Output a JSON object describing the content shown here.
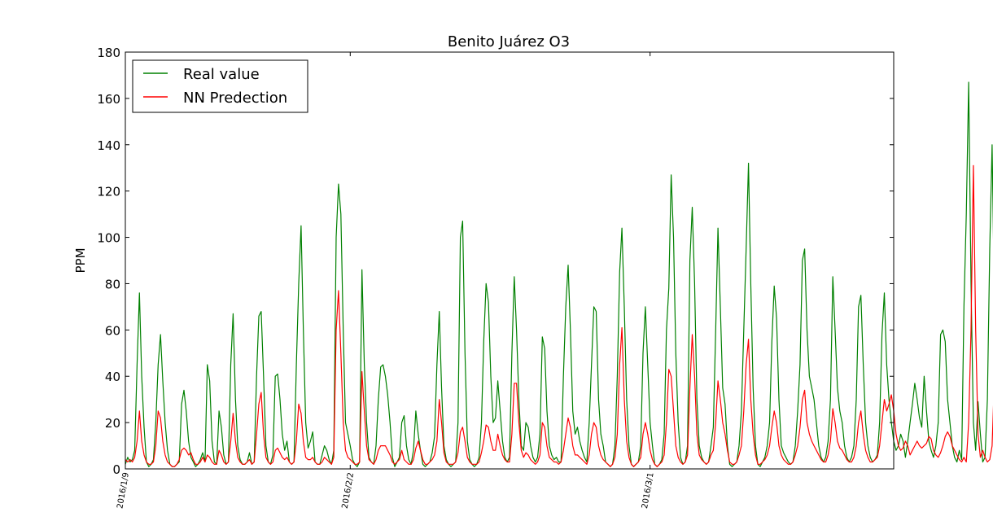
{
  "chart_data": {
    "type": "line",
    "title": "Benito Juárez O3",
    "xlabel": "",
    "ylabel": "PPM",
    "ylim": [
      0,
      180
    ],
    "y_ticks": [
      0,
      20,
      40,
      60,
      80,
      100,
      120,
      140,
      160,
      180
    ],
    "x_tick_labels": [
      "2016/1/9",
      "2016/2/2",
      "2016/3/1"
    ],
    "x_tick_index": [
      0,
      96,
      224
    ],
    "x_range": [
      0,
      328
    ],
    "grid": false,
    "legend_position": "upper-left",
    "series": [
      {
        "name": "Real value",
        "color": "#008000",
        "values": [
          2,
          5,
          3,
          4,
          8,
          45,
          76,
          40,
          18,
          3,
          1,
          2,
          4,
          20,
          45,
          58,
          38,
          20,
          8,
          2,
          1,
          1,
          2,
          3,
          28,
          34,
          25,
          12,
          5,
          3,
          1,
          2,
          4,
          7,
          3,
          45,
          38,
          12,
          3,
          2,
          25,
          18,
          6,
          2,
          3,
          45,
          67,
          30,
          10,
          4,
          2,
          2,
          3,
          7,
          2,
          3,
          40,
          66,
          68,
          40,
          10,
          3,
          2,
          6,
          40,
          41,
          30,
          15,
          8,
          12,
          3,
          2,
          3,
          45,
          80,
          105,
          60,
          20,
          9,
          12,
          16,
          3,
          2,
          2,
          6,
          10,
          8,
          4,
          2,
          8,
          100,
          123,
          110,
          60,
          20,
          15,
          10,
          4,
          2,
          1,
          3,
          86,
          45,
          20,
          5,
          3,
          2,
          10,
          30,
          44,
          45,
          40,
          32,
          20,
          5,
          1,
          3,
          5,
          20,
          23,
          10,
          4,
          2,
          8,
          25,
          15,
          8,
          2,
          1,
          2,
          3,
          7,
          14,
          45,
          68,
          35,
          10,
          4,
          2,
          1,
          2,
          3,
          20,
          100,
          107,
          50,
          12,
          4,
          2,
          1,
          2,
          5,
          20,
          55,
          80,
          72,
          40,
          20,
          22,
          38,
          25,
          12,
          5,
          3,
          5,
          50,
          83,
          60,
          30,
          10,
          8,
          20,
          18,
          10,
          5,
          3,
          5,
          15,
          57,
          52,
          25,
          10,
          6,
          4,
          5,
          3,
          3,
          40,
          70,
          88,
          60,
          25,
          15,
          18,
          12,
          8,
          5,
          3,
          20,
          45,
          70,
          68,
          30,
          15,
          10,
          3,
          2,
          1,
          2,
          10,
          40,
          85,
          104,
          70,
          30,
          10,
          2,
          1,
          2,
          3,
          10,
          50,
          70,
          45,
          20,
          10,
          2,
          1,
          2,
          4,
          15,
          60,
          78,
          127,
          100,
          50,
          20,
          5,
          2,
          3,
          10,
          90,
          113,
          80,
          30,
          10,
          5,
          3,
          2,
          3,
          10,
          18,
          60,
          104,
          70,
          35,
          28,
          10,
          2,
          1,
          2,
          3,
          10,
          25,
          60,
          95,
          132,
          80,
          35,
          10,
          2,
          1,
          3,
          5,
          10,
          20,
          55,
          79,
          65,
          30,
          10,
          7,
          5,
          3,
          2,
          3,
          10,
          25,
          45,
          90,
          95,
          60,
          40,
          35,
          30,
          20,
          10,
          5,
          3,
          5,
          12,
          30,
          83,
          60,
          35,
          25,
          20,
          10,
          5,
          3,
          5,
          10,
          30,
          70,
          75,
          45,
          20,
          10,
          5,
          3,
          4,
          6,
          20,
          58,
          76,
          45,
          30,
          20,
          12,
          8,
          10,
          15,
          12,
          5,
          12,
          20,
          28,
          37,
          30,
          22,
          18,
          40,
          25,
          12,
          8,
          5,
          10,
          20,
          58,
          60,
          55,
          30,
          20,
          10,
          5,
          3,
          8,
          4,
          70,
          110,
          167,
          80,
          20,
          8,
          29,
          15,
          3,
          5,
          30,
          95,
          140,
          70,
          30,
          18,
          10,
          30,
          40,
          15,
          5,
          10,
          20,
          68,
          30,
          40,
          10,
          5,
          3,
          3,
          5,
          2,
          10,
          20,
          83,
          60,
          25,
          12,
          5,
          3,
          2,
          2,
          3,
          10,
          45,
          71,
          55,
          30,
          20,
          22,
          5
        ]
      },
      {
        "name": "NN Predection",
        "color": "#ff0000",
        "values": [
          4,
          3,
          4,
          3,
          5,
          12,
          25,
          12,
          6,
          3,
          2,
          2,
          3,
          10,
          25,
          22,
          12,
          6,
          3,
          2,
          1,
          1,
          2,
          4,
          8,
          9,
          8,
          6,
          7,
          4,
          2,
          2,
          3,
          5,
          3,
          6,
          5,
          3,
          2,
          2,
          8,
          6,
          3,
          2,
          3,
          12,
          24,
          12,
          5,
          3,
          2,
          2,
          3,
          4,
          2,
          3,
          15,
          28,
          33,
          15,
          5,
          3,
          2,
          3,
          8,
          9,
          7,
          5,
          4,
          5,
          3,
          2,
          3,
          12,
          28,
          24,
          12,
          5,
          4,
          4,
          5,
          3,
          2,
          2,
          3,
          5,
          4,
          3,
          2,
          5,
          60,
          77,
          50,
          20,
          8,
          5,
          4,
          3,
          2,
          2,
          3,
          42,
          25,
          10,
          4,
          3,
          2,
          4,
          8,
          10,
          10,
          10,
          8,
          6,
          3,
          2,
          3,
          4,
          8,
          4,
          3,
          2,
          2,
          4,
          9,
          12,
          8,
          4,
          2,
          2,
          3,
          4,
          6,
          12,
          30,
          20,
          7,
          3,
          2,
          2,
          2,
          3,
          7,
          16,
          18,
          12,
          5,
          3,
          2,
          2,
          2,
          3,
          7,
          12,
          19,
          18,
          12,
          8,
          8,
          15,
          10,
          6,
          4,
          3,
          3,
          15,
          37,
          37,
          20,
          8,
          5,
          7,
          6,
          4,
          3,
          2,
          3,
          6,
          20,
          18,
          10,
          5,
          4,
          3,
          3,
          2,
          3,
          8,
          15,
          22,
          18,
          10,
          6,
          6,
          5,
          4,
          3,
          2,
          6,
          15,
          20,
          18,
          10,
          6,
          4,
          3,
          2,
          1,
          2,
          5,
          15,
          45,
          61,
          30,
          12,
          5,
          2,
          1,
          2,
          3,
          5,
          15,
          20,
          15,
          8,
          4,
          2,
          1,
          2,
          3,
          6,
          20,
          43,
          40,
          25,
          10,
          5,
          3,
          2,
          3,
          6,
          35,
          58,
          40,
          15,
          6,
          4,
          3,
          2,
          3,
          6,
          8,
          20,
          38,
          30,
          20,
          15,
          8,
          3,
          2,
          2,
          3,
          6,
          10,
          25,
          45,
          56,
          30,
          15,
          6,
          2,
          2,
          3,
          4,
          6,
          10,
          18,
          25,
          20,
          10,
          6,
          4,
          3,
          2,
          2,
          3,
          6,
          10,
          18,
          30,
          34,
          20,
          15,
          12,
          10,
          8,
          6,
          4,
          3,
          3,
          6,
          12,
          26,
          20,
          12,
          9,
          8,
          6,
          4,
          3,
          3,
          5,
          10,
          20,
          25,
          15,
          8,
          5,
          3,
          3,
          4,
          5,
          10,
          20,
          30,
          25,
          28,
          32,
          25,
          15,
          10,
          8,
          9,
          12,
          10,
          6,
          8,
          10,
          12,
          10,
          9,
          10,
          11,
          14,
          13,
          8,
          6,
          5,
          7,
          10,
          14,
          16,
          14,
          10,
          8,
          6,
          4,
          3,
          5,
          3,
          20,
          60,
          131,
          60,
          15,
          5,
          8,
          5,
          3,
          4,
          10,
          40,
          80,
          40,
          15,
          10,
          5,
          8,
          10,
          6,
          4,
          5,
          8,
          20,
          12,
          15,
          6,
          4,
          3,
          4,
          5,
          3,
          6,
          12,
          33,
          22,
          10,
          6,
          4,
          3,
          2,
          2,
          3,
          6,
          15,
          24,
          17,
          12,
          8,
          8,
          5
        ]
      }
    ]
  }
}
